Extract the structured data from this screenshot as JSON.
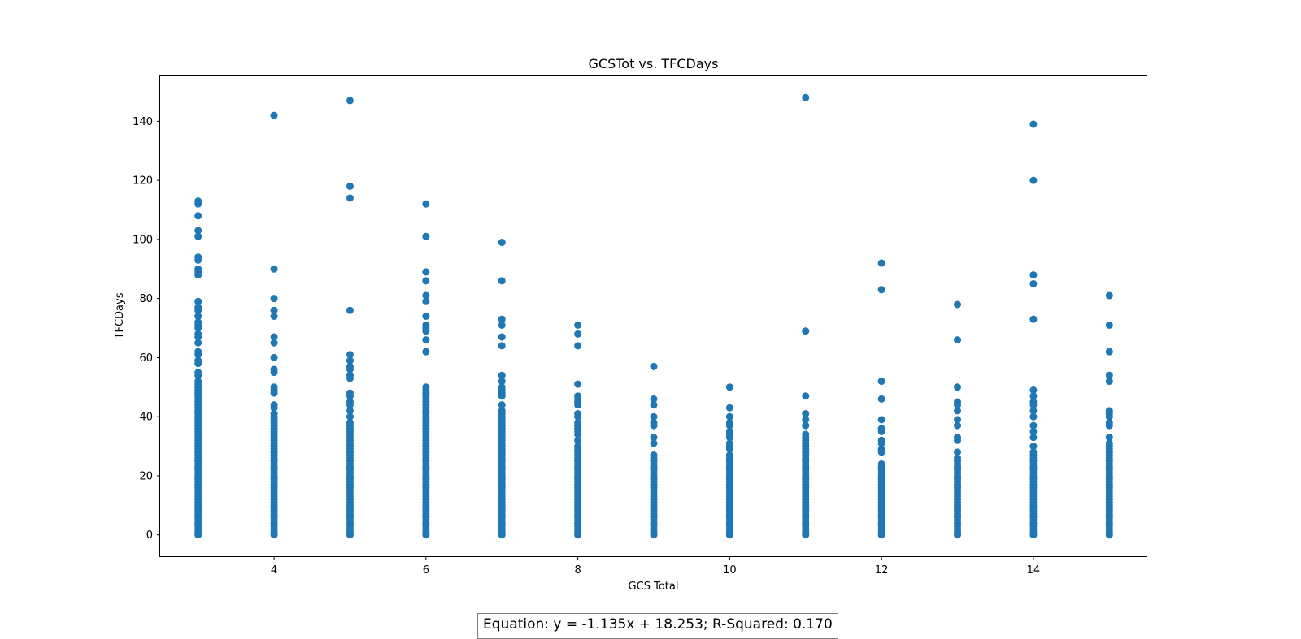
{
  "chart_data": {
    "type": "scatter",
    "title": "GCSTot vs. TFCDays",
    "xlabel": "GCS Total",
    "ylabel": "TFCDays",
    "xlim": [
      2.5,
      15.5
    ],
    "ylim": [
      -7.5,
      155.5
    ],
    "xticks": [
      4,
      6,
      8,
      10,
      12,
      14
    ],
    "yticks": [
      0,
      20,
      40,
      60,
      80,
      100,
      120,
      140
    ],
    "grid": false,
    "marker_color": "#1f77b4",
    "series": [
      {
        "points": [
          {
            "x": 3,
            "ys": [
              113,
              112,
              108,
              103,
              101,
              94,
              93,
              90,
              89,
              88,
              79,
              77,
              76,
              74,
              72,
              71,
              70,
              68,
              67,
              65,
              62,
              61,
              59,
              58,
              55,
              54,
              52,
              51,
              50,
              49,
              48,
              47,
              46,
              45,
              44,
              43,
              42,
              41,
              40,
              39,
              38,
              37,
              36,
              35,
              34,
              33,
              32,
              31,
              30,
              29,
              28,
              27,
              26,
              25,
              24,
              23,
              22,
              21,
              20,
              19,
              18,
              17,
              16,
              15,
              14,
              13,
              12,
              11,
              10,
              9,
              8,
              7,
              6,
              5,
              4,
              3,
              2,
              1,
              0
            ]
          },
          {
            "x": 4,
            "ys": [
              142,
              90,
              80,
              76,
              74,
              67,
              65,
              60,
              56,
              55,
              50,
              49,
              48,
              44,
              43,
              41,
              40,
              39,
              38,
              37,
              36,
              35,
              34,
              33,
              32,
              31,
              30,
              29,
              28,
              27,
              26,
              25,
              24,
              23,
              22,
              21,
              20,
              19,
              18,
              17,
              16,
              15,
              14,
              13,
              12,
              11,
              10,
              9,
              8,
              7,
              6,
              5,
              4,
              3,
              2,
              1,
              0
            ]
          },
          {
            "x": 5,
            "ys": [
              147,
              118,
              114,
              76,
              61,
              59,
              57,
              56,
              54,
              53,
              48,
              47,
              45,
              44,
              42,
              40,
              38,
              37,
              36,
              35,
              34,
              33,
              32,
              31,
              30,
              29,
              28,
              27,
              26,
              25,
              24,
              23,
              22,
              21,
              20,
              19,
              18,
              17,
              16,
              15,
              14,
              13,
              12,
              11,
              10,
              9,
              8,
              7,
              6,
              5,
              4,
              3,
              2,
              1,
              0
            ]
          },
          {
            "x": 6,
            "ys": [
              112,
              101,
              89,
              86,
              81,
              79,
              74,
              71,
              70,
              69,
              66,
              62,
              50,
              49,
              48,
              47,
              46,
              45,
              44,
              43,
              42,
              41,
              40,
              39,
              38,
              37,
              36,
              35,
              34,
              33,
              32,
              31,
              30,
              29,
              28,
              27,
              26,
              25,
              24,
              23,
              22,
              21,
              20,
              19,
              18,
              17,
              16,
              15,
              14,
              13,
              12,
              11,
              10,
              9,
              8,
              7,
              6,
              5,
              4,
              3,
              2,
              1,
              0
            ]
          },
          {
            "x": 7,
            "ys": [
              99,
              86,
              73,
              71,
              67,
              64,
              54,
              52,
              50,
              49,
              48,
              47,
              44,
              42,
              41,
              40,
              39,
              38,
              37,
              36,
              35,
              34,
              33,
              32,
              31,
              30,
              29,
              28,
              27,
              26,
              25,
              24,
              23,
              22,
              21,
              20,
              19,
              18,
              17,
              16,
              15,
              14,
              13,
              12,
              11,
              10,
              9,
              8,
              7,
              6,
              5,
              4,
              3,
              2,
              1,
              0
            ]
          },
          {
            "x": 8,
            "ys": [
              71,
              68,
              64,
              51,
              47,
              46,
              45,
              44,
              41,
              40,
              38,
              37,
              36,
              35,
              34,
              32,
              30,
              29,
              28,
              27,
              26,
              25,
              24,
              23,
              22,
              21,
              20,
              19,
              18,
              17,
              16,
              15,
              14,
              13,
              12,
              11,
              10,
              9,
              8,
              7,
              6,
              5,
              4,
              3,
              2,
              1,
              0
            ]
          },
          {
            "x": 9,
            "ys": [
              57,
              46,
              44,
              40,
              38,
              37,
              33,
              31,
              27,
              26,
              25,
              24,
              23,
              22,
              21,
              20,
              19,
              18,
              17,
              16,
              15,
              14,
              13,
              12,
              11,
              10,
              9,
              8,
              7,
              6,
              5,
              4,
              3,
              2,
              1,
              0
            ]
          },
          {
            "x": 10,
            "ys": [
              50,
              43,
              40,
              38,
              37,
              35,
              34,
              33,
              31,
              30,
              29,
              27,
              26,
              25,
              24,
              23,
              22,
              21,
              20,
              19,
              18,
              17,
              16,
              15,
              14,
              13,
              12,
              11,
              10,
              9,
              8,
              7,
              6,
              5,
              4,
              3,
              2,
              1,
              0
            ]
          },
          {
            "x": 11,
            "ys": [
              148,
              69,
              47,
              41,
              39,
              37,
              34,
              33,
              32,
              31,
              30,
              29,
              28,
              27,
              26,
              25,
              24,
              23,
              22,
              21,
              20,
              19,
              18,
              17,
              16,
              15,
              14,
              13,
              12,
              11,
              10,
              9,
              8,
              7,
              6,
              5,
              4,
              3,
              2,
              1,
              0
            ]
          },
          {
            "x": 12,
            "ys": [
              92,
              83,
              52,
              46,
              39,
              36,
              35,
              32,
              31,
              29,
              28,
              24,
              23,
              22,
              21,
              20,
              19,
              18,
              17,
              16,
              15,
              14,
              13,
              12,
              11,
              10,
              9,
              8,
              7,
              6,
              5,
              4,
              3,
              2,
              1,
              0
            ]
          },
          {
            "x": 13,
            "ys": [
              78,
              66,
              50,
              45,
              44,
              42,
              39,
              37,
              33,
              32,
              28,
              26,
              25,
              24,
              23,
              22,
              21,
              20,
              19,
              18,
              17,
              16,
              15,
              14,
              13,
              12,
              11,
              10,
              9,
              8,
              7,
              6,
              5,
              4,
              3,
              2,
              1,
              0
            ]
          },
          {
            "x": 14,
            "ys": [
              139,
              120,
              88,
              85,
              73,
              49,
              47,
              45,
              44,
              42,
              40,
              37,
              35,
              33,
              30,
              28,
              27,
              26,
              25,
              24,
              23,
              22,
              21,
              20,
              19,
              18,
              17,
              16,
              15,
              14,
              13,
              12,
              11,
              10,
              9,
              8,
              7,
              6,
              5,
              4,
              3,
              2,
              1,
              0
            ]
          },
          {
            "x": 15,
            "ys": [
              81,
              71,
              62,
              54,
              52,
              42,
              41,
              40,
              38,
              37,
              33,
              31,
              30,
              29,
              28,
              27,
              26,
              25,
              24,
              23,
              22,
              21,
              20,
              19,
              18,
              17,
              16,
              15,
              14,
              13,
              12,
              11,
              10,
              9,
              8,
              7,
              6,
              5,
              4,
              3,
              2,
              1,
              0
            ]
          }
        ]
      }
    ],
    "annotation": "Equation: y = -1.135x + 18.253; R-Squared: 0.170"
  }
}
